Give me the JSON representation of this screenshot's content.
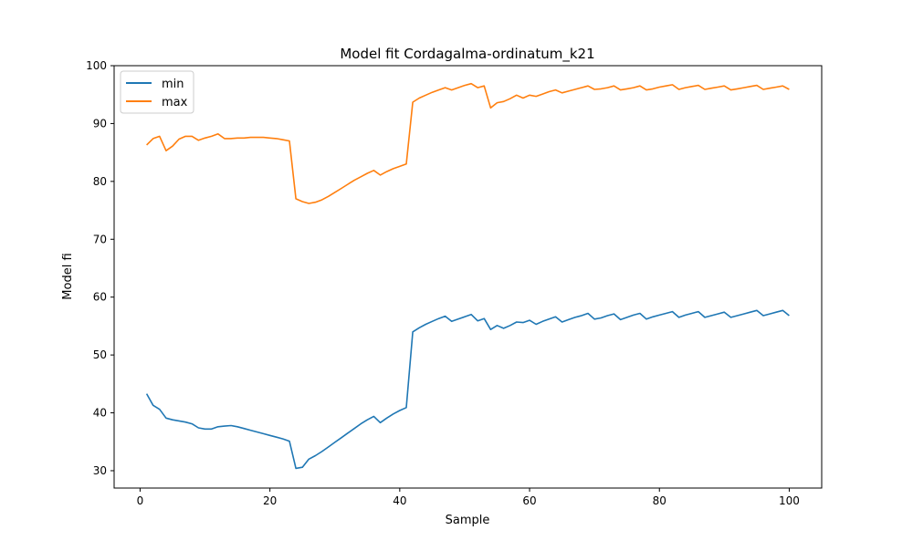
{
  "chart_data": {
    "type": "line",
    "title": "Model fit Cordagalma-ordinatum_k21",
    "xlabel": "Sample",
    "ylabel": "Model fi",
    "xlim": [
      -4,
      105
    ],
    "ylim": [
      27,
      100
    ],
    "xticks": [
      0,
      20,
      40,
      60,
      80,
      100
    ],
    "yticks": [
      30,
      40,
      50,
      60,
      70,
      80,
      90,
      100
    ],
    "grid": false,
    "legend_position": "upper-left",
    "x": [
      1,
      2,
      3,
      4,
      5,
      6,
      7,
      8,
      9,
      10,
      11,
      12,
      13,
      14,
      15,
      16,
      17,
      18,
      19,
      20,
      21,
      22,
      23,
      24,
      25,
      26,
      27,
      28,
      29,
      30,
      31,
      32,
      33,
      34,
      35,
      36,
      37,
      38,
      39,
      40,
      41,
      42,
      43,
      44,
      45,
      46,
      47,
      48,
      49,
      50,
      51,
      52,
      53,
      54,
      55,
      56,
      57,
      58,
      59,
      60,
      61,
      62,
      63,
      64,
      65,
      66,
      67,
      68,
      69,
      70,
      71,
      72,
      73,
      74,
      75,
      76,
      77,
      78,
      79,
      80,
      81,
      82,
      83,
      84,
      85,
      86,
      87,
      88,
      89,
      90,
      91,
      92,
      93,
      94,
      95,
      96,
      97,
      98,
      99,
      100
    ],
    "series": [
      {
        "name": "min",
        "color": "#1f77b4",
        "values": [
          43.3,
          41.3,
          40.6,
          39.1,
          38.8,
          38.6,
          38.4,
          38.1,
          37.4,
          37.2,
          37.2,
          37.6,
          37.7,
          37.8,
          37.6,
          37.3,
          37.0,
          36.7,
          36.4,
          36.1,
          35.8,
          35.5,
          35.1,
          30.4,
          30.6,
          32.0,
          32.6,
          33.3,
          34.1,
          34.9,
          35.7,
          36.5,
          37.3,
          38.1,
          38.8,
          39.4,
          38.3,
          39.1,
          39.8,
          40.4,
          40.9,
          54.0,
          54.7,
          55.3,
          55.8,
          56.3,
          56.7,
          55.8,
          56.2,
          56.6,
          57.0,
          55.9,
          56.3,
          54.4,
          55.1,
          54.6,
          55.1,
          55.7,
          55.6,
          56.0,
          55.3,
          55.8,
          56.2,
          56.6,
          55.7,
          56.1,
          56.5,
          56.8,
          57.2,
          56.2,
          56.4,
          56.8,
          57.1,
          56.1,
          56.5,
          56.9,
          57.2,
          56.2,
          56.6,
          56.9,
          57.2,
          57.5,
          56.5,
          56.9,
          57.2,
          57.5,
          56.5,
          56.8,
          57.1,
          57.4,
          56.5,
          56.8,
          57.1,
          57.4,
          57.7,
          56.8,
          57.1,
          57.4,
          57.7,
          56.8
        ]
      },
      {
        "name": "max",
        "color": "#ff7f0e",
        "values": [
          86.3,
          87.4,
          87.8,
          85.3,
          86.1,
          87.3,
          87.8,
          87.8,
          87.1,
          87.5,
          87.8,
          88.2,
          87.4,
          87.4,
          87.5,
          87.5,
          87.6,
          87.6,
          87.6,
          87.5,
          87.4,
          87.2,
          87.0,
          77.0,
          76.5,
          76.2,
          76.4,
          76.8,
          77.4,
          78.1,
          78.8,
          79.5,
          80.2,
          80.8,
          81.4,
          81.9,
          81.1,
          81.7,
          82.2,
          82.6,
          83.0,
          93.7,
          94.4,
          94.9,
          95.4,
          95.8,
          96.2,
          95.8,
          96.2,
          96.6,
          96.9,
          96.2,
          96.5,
          92.7,
          93.6,
          93.8,
          94.3,
          94.9,
          94.4,
          94.9,
          94.7,
          95.1,
          95.5,
          95.8,
          95.3,
          95.6,
          95.9,
          96.2,
          96.5,
          95.9,
          96.0,
          96.2,
          96.5,
          95.8,
          96.0,
          96.2,
          96.5,
          95.8,
          96.0,
          96.3,
          96.5,
          96.7,
          95.9,
          96.2,
          96.4,
          96.6,
          95.9,
          96.1,
          96.3,
          96.5,
          95.8,
          96.0,
          96.2,
          96.4,
          96.6,
          95.9,
          96.1,
          96.3,
          96.5,
          95.9
        ]
      }
    ]
  }
}
